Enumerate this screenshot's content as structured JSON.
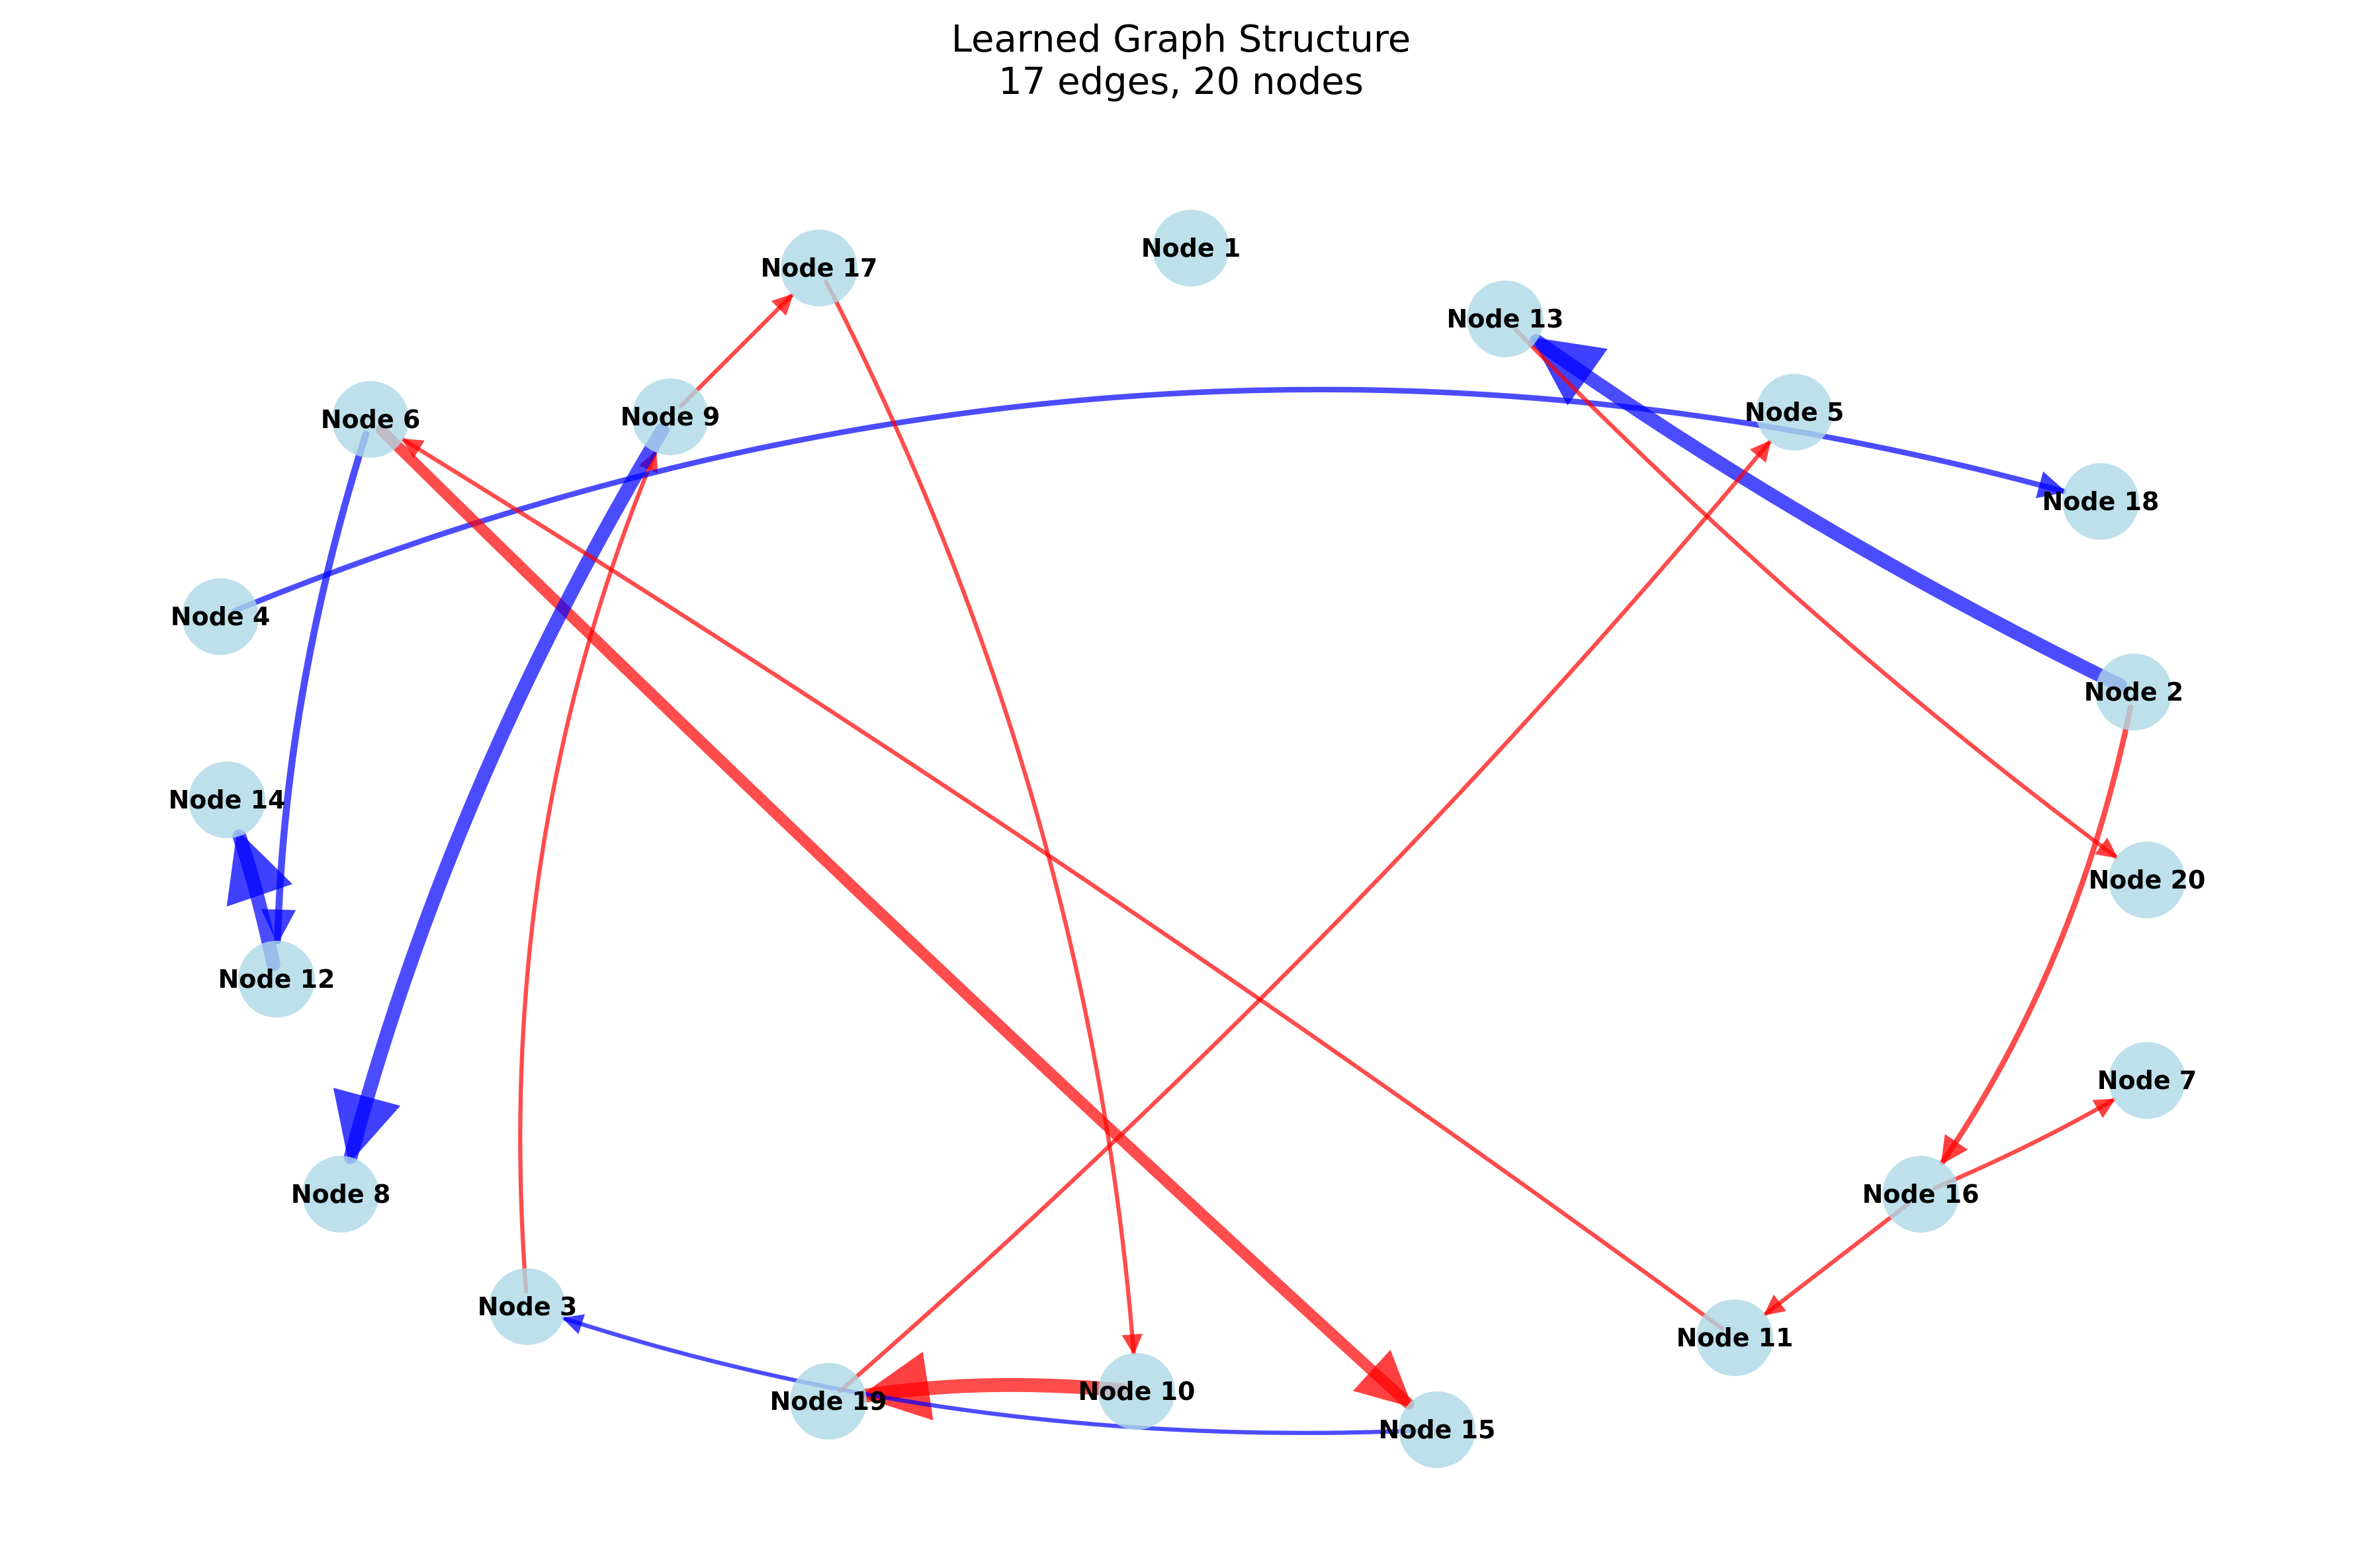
{
  "title": {
    "line1": "Learned Graph Structure",
    "line2": "17 edges, 20 nodes"
  },
  "colors": {
    "node_fill": "#add8e6",
    "positive_edge": "#ff0000",
    "negative_edge": "#0000ff",
    "label": "#000000"
  },
  "nodes": [
    {
      "id": 1,
      "label": "Node 1"
    },
    {
      "id": 2,
      "label": "Node 2"
    },
    {
      "id": 3,
      "label": "Node 3"
    },
    {
      "id": 4,
      "label": "Node 4"
    },
    {
      "id": 5,
      "label": "Node 5"
    },
    {
      "id": 6,
      "label": "Node 6"
    },
    {
      "id": 7,
      "label": "Node 7"
    },
    {
      "id": 8,
      "label": "Node 8"
    },
    {
      "id": 9,
      "label": "Node 9"
    },
    {
      "id": 10,
      "label": "Node 10"
    },
    {
      "id": 11,
      "label": "Node 11"
    },
    {
      "id": 12,
      "label": "Node 12"
    },
    {
      "id": 13,
      "label": "Node 13"
    },
    {
      "id": 14,
      "label": "Node 14"
    },
    {
      "id": 15,
      "label": "Node 15"
    },
    {
      "id": 16,
      "label": "Node 16"
    },
    {
      "id": 17,
      "label": "Node 17"
    },
    {
      "id": 18,
      "label": "Node 18"
    },
    {
      "id": 19,
      "label": "Node 19"
    },
    {
      "id": 20,
      "label": "Node 20"
    }
  ],
  "edges": [
    {
      "source": 2,
      "target": 13,
      "sign": "negative",
      "weight": 5
    },
    {
      "source": 2,
      "target": 16,
      "sign": "positive",
      "weight": 2
    },
    {
      "source": 3,
      "target": 9,
      "sign": "positive",
      "weight": 1.5
    },
    {
      "source": 4,
      "target": 18,
      "sign": "negative",
      "weight": 2
    },
    {
      "source": 6,
      "target": 12,
      "sign": "negative",
      "weight": 2.5
    },
    {
      "source": 6,
      "target": 15,
      "sign": "positive",
      "weight": 4
    },
    {
      "source": 9,
      "target": 8,
      "sign": "negative",
      "weight": 5
    },
    {
      "source": 9,
      "target": 17,
      "sign": "positive",
      "weight": 1.5
    },
    {
      "source": 10,
      "target": 19,
      "sign": "positive",
      "weight": 5
    },
    {
      "source": 11,
      "target": 6,
      "sign": "positive",
      "weight": 1.5
    },
    {
      "source": 12,
      "target": 14,
      "sign": "negative",
      "weight": 5
    },
    {
      "source": 13,
      "target": 20,
      "sign": "positive",
      "weight": 1.5
    },
    {
      "source": 15,
      "target": 3,
      "sign": "negative",
      "weight": 1.5
    },
    {
      "source": 16,
      "target": 7,
      "sign": "positive",
      "weight": 1.5
    },
    {
      "source": 16,
      "target": 11,
      "sign": "positive",
      "weight": 1.5
    },
    {
      "source": 17,
      "target": 10,
      "sign": "positive",
      "weight": 1.5
    },
    {
      "source": 19,
      "target": 5,
      "sign": "positive",
      "weight": 1.5
    }
  ]
}
